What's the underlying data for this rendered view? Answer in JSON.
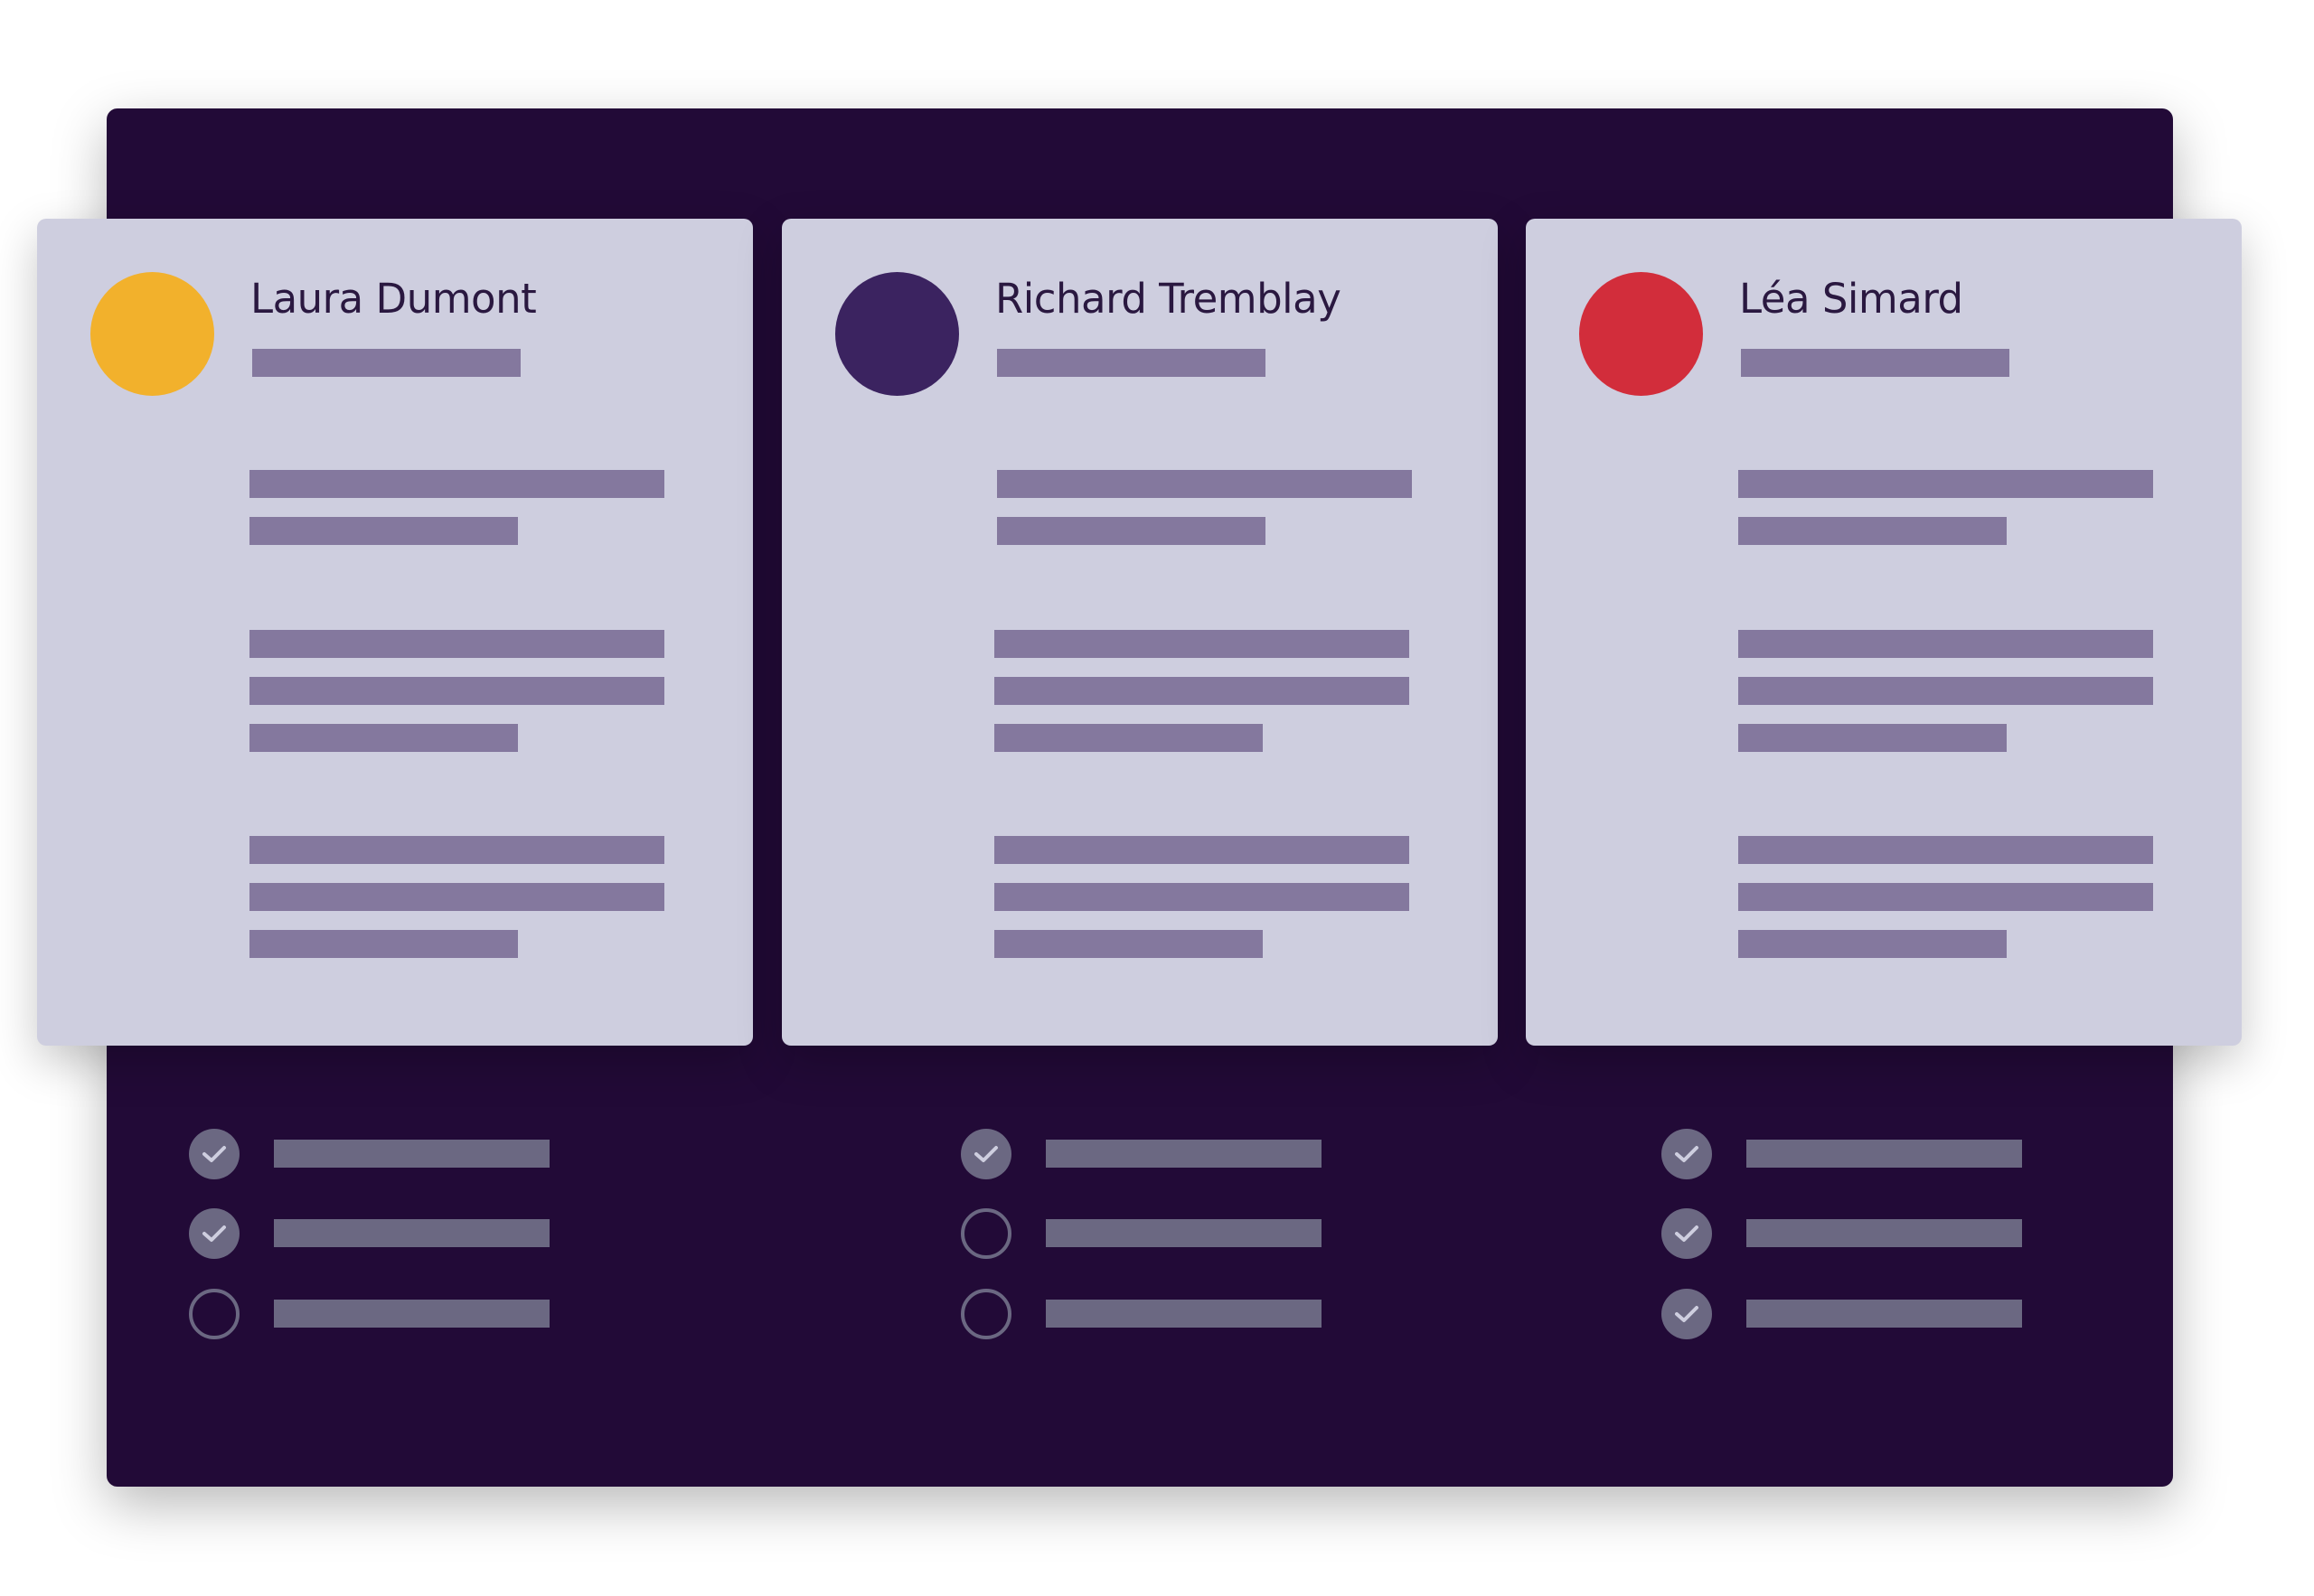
{
  "cards": [
    {
      "name": "Laura Dumont",
      "avatar_color": "#f2b12c"
    },
    {
      "name": "Richard Tremblay",
      "avatar_color": "#3b2360"
    },
    {
      "name": "Léa Simard",
      "avatar_color": "#d22d3b"
    }
  ],
  "checklists": [
    [
      true,
      true,
      false
    ],
    [
      true,
      false,
      false
    ],
    [
      true,
      true,
      true
    ]
  ],
  "colors": {
    "panel": "#220a37",
    "card": "#cecedf",
    "text_bar": "#84789e",
    "check": "#6b6882"
  }
}
